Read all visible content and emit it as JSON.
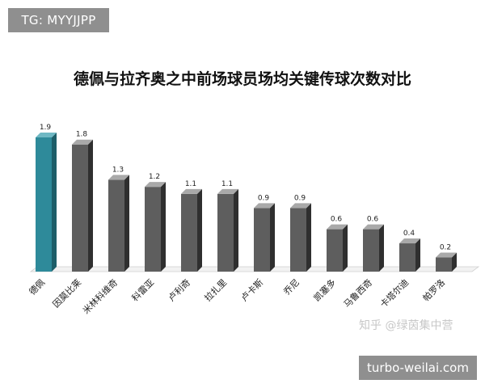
{
  "tag": "TG: MYYJJPP",
  "site_badge": "turbo-weilai.com",
  "watermark": "知乎 @绿茵集中营",
  "chart_data": {
    "type": "bar",
    "title": "德佩与拉齐奥之中前场球员场均关键传球次数对比",
    "xlabel": "",
    "ylabel": "",
    "ylim": [
      0,
      1.9
    ],
    "grid": false,
    "categories": [
      "德佩",
      "因莫比莱",
      "米林科维奇",
      "科雷亚",
      "卢利奇",
      "拉扎里",
      "卢卡斯",
      "乔尼",
      "凯塞多",
      "马鲁西奇",
      "卡塔尔迪",
      "帕罗洛"
    ],
    "values": [
      1.9,
      1.8,
      1.3,
      1.2,
      1.1,
      1.1,
      0.9,
      0.9,
      0.6,
      0.6,
      0.4,
      0.2
    ],
    "value_labels": [
      "1.9",
      "1.8",
      "1.3",
      "1.2",
      "1.1",
      "1.1",
      "0.9",
      "0.9",
      "0.6",
      "0.6",
      "0.4",
      "0.2"
    ],
    "colors": {
      "highlight_front": "#2e8a9a",
      "highlight_top": "#6fb8c4",
      "highlight_side": "#1d5e69",
      "bar_front": "#5e5e5e",
      "bar_top": "#a9a9a9",
      "bar_side": "#2f2f2f"
    }
  }
}
